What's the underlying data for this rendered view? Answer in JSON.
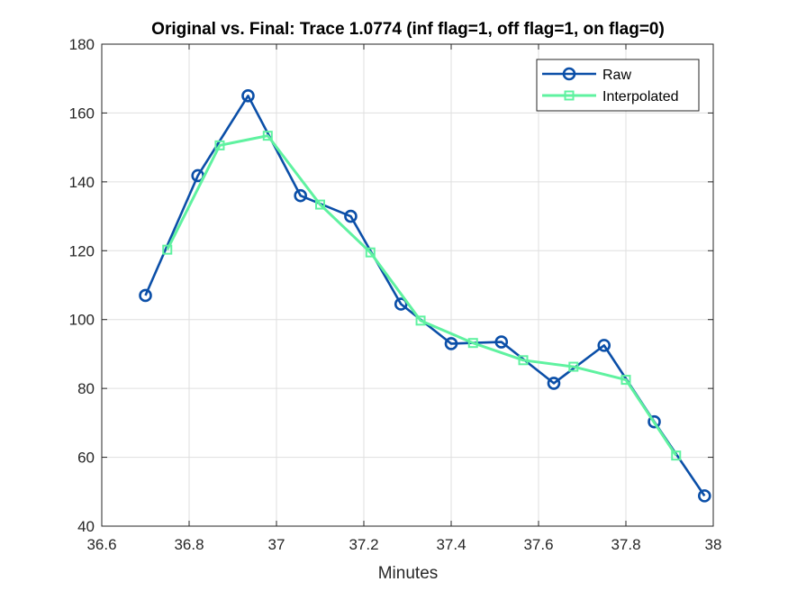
{
  "chart_data": {
    "type": "line",
    "title": "Original vs. Final: Trace 1.0774 (inf flag=1, off flag=1, on flag=0)",
    "xlabel": "Minutes",
    "ylabel": "",
    "xlim": [
      36.6,
      38
    ],
    "ylim": [
      40,
      180
    ],
    "xticks": [
      "36.6",
      "36.8",
      "37",
      "37.2",
      "37.4",
      "37.6",
      "37.8",
      "38"
    ],
    "yticks": [
      "40",
      "60",
      "80",
      "100",
      "120",
      "140",
      "160",
      "180"
    ],
    "grid": true,
    "legend_position": "top-right",
    "series": [
      {
        "name": "Raw",
        "marker": "circle",
        "color": "#0b4fa8",
        "x": [
          36.7,
          36.82,
          36.935,
          37.055,
          37.17,
          37.285,
          37.4,
          37.515,
          37.635,
          37.75,
          37.865,
          37.98
        ],
        "y": [
          107,
          141.8,
          165,
          136,
          130,
          104.5,
          93,
          93.5,
          81.5,
          92.5,
          70.3,
          48.8
        ]
      },
      {
        "name": "Interpolated",
        "marker": "square",
        "color": "#5ff2a0",
        "x": [
          36.75,
          36.87,
          36.98,
          37.1,
          37.215,
          37.33,
          37.45,
          37.565,
          37.68,
          37.8,
          37.915
        ],
        "y": [
          120.3,
          150.6,
          153.4,
          133.4,
          119.5,
          99.7,
          93.2,
          88.2,
          86.3,
          82.5,
          60.5
        ]
      }
    ]
  }
}
